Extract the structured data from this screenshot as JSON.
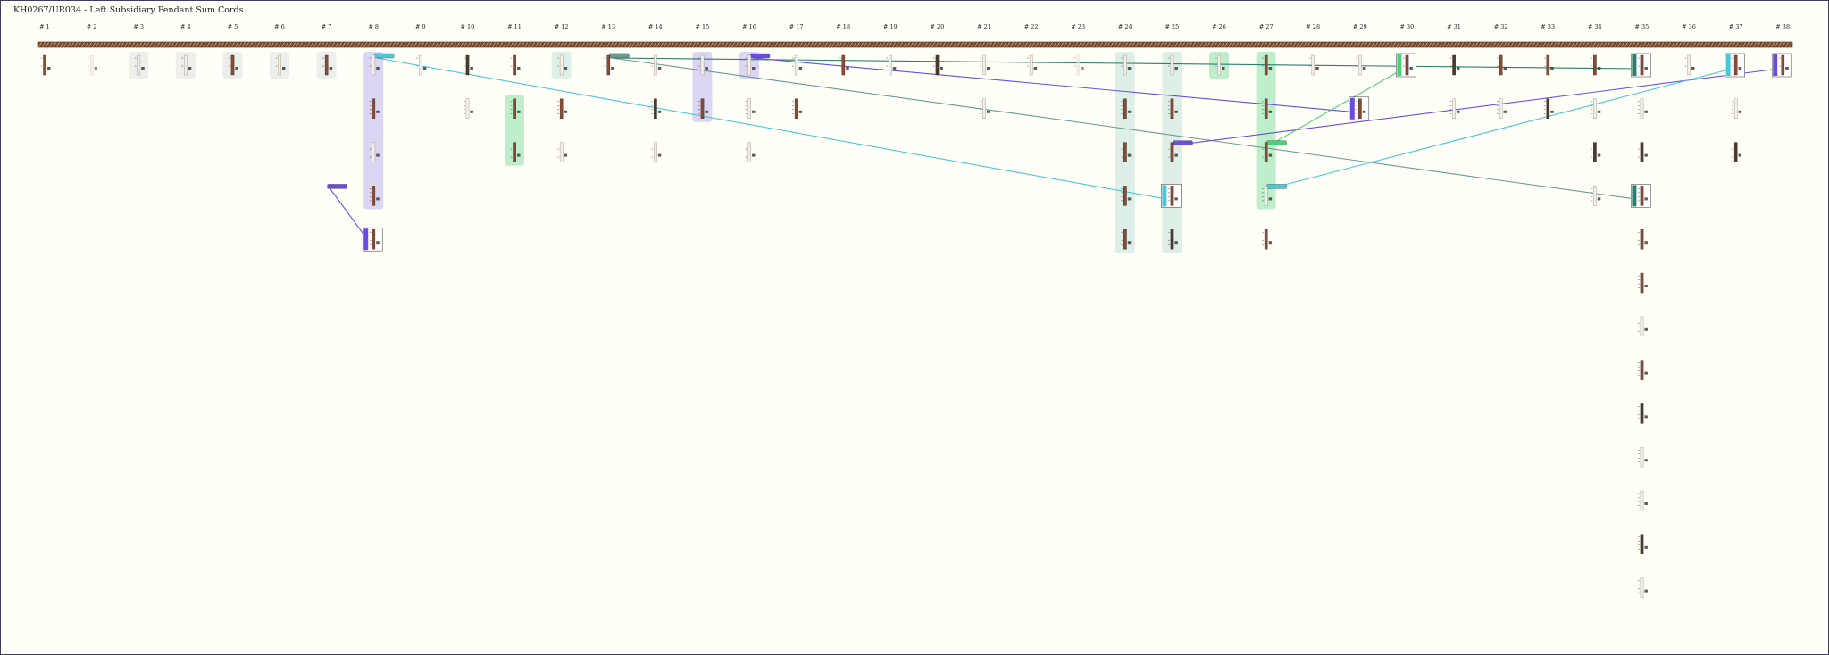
{
  "title": "KH0267/UR034 - Left Subsidiary Pendant Sum Cords",
  "columns": [
    "# 1",
    "# 2",
    "# 3",
    "# 4",
    "# 5",
    "# 6",
    "# 7",
    "# 8",
    "# 9",
    "# 10",
    "# 11",
    "# 12",
    "# 13",
    "# 14",
    "# 15",
    "# 16",
    "# 17",
    "# 18",
    "# 19",
    "# 20",
    "# 21",
    "# 22",
    "# 23",
    "# 24",
    "# 25",
    "# 26",
    "# 27",
    "# 28",
    "# 29",
    "# 30",
    "# 31",
    "# 32",
    "# 33",
    "# 34",
    "# 35",
    "# 36",
    "# 37",
    "# 38"
  ],
  "colors": {
    "background": "#fffff8",
    "main_cord": "#8b5a3c",
    "cord_brown": "#8b4a34",
    "cord_dark": "#4a3a30",
    "teal": "#2a7f6a",
    "purple": "#6a4de0",
    "cyan": "#49c7d6",
    "green": "#4cd07a",
    "grey_teal": "#6a9a92",
    "highlight_purple": "#cfc8f2",
    "highlight_green": "#a8e8bc",
    "highlight_teal": "#d2eae2",
    "highlight_grey": "#e6eae8"
  },
  "cord_levels": [
    {
      "col": 1,
      "level": 0,
      "kind": "brown"
    },
    {
      "col": 2,
      "level": 0,
      "kind": "ghost"
    },
    {
      "col": 3,
      "level": 0,
      "kind": "light"
    },
    {
      "col": 4,
      "level": 0,
      "kind": "light"
    },
    {
      "col": 5,
      "level": 0,
      "kind": "brown"
    },
    {
      "col": 6,
      "level": 0,
      "kind": "light"
    },
    {
      "col": 7,
      "level": 0,
      "kind": "brown"
    },
    {
      "col": 8,
      "level": 0,
      "kind": "light"
    },
    {
      "col": 8,
      "level": 1,
      "kind": "brown"
    },
    {
      "col": 8,
      "level": 2,
      "kind": "light"
    },
    {
      "col": 8,
      "level": 3,
      "kind": "brown"
    },
    {
      "col": 8,
      "level": 4,
      "kind": "purple-box"
    },
    {
      "col": 9,
      "level": 0,
      "kind": "light"
    },
    {
      "col": 10,
      "level": 0,
      "kind": "dark"
    },
    {
      "col": 10,
      "level": 1,
      "kind": "light"
    },
    {
      "col": 11,
      "level": 0,
      "kind": "brown"
    },
    {
      "col": 11,
      "level": 1,
      "kind": "brown"
    },
    {
      "col": 11,
      "level": 2,
      "kind": "brown"
    },
    {
      "col": 12,
      "level": 0,
      "kind": "light"
    },
    {
      "col": 12,
      "level": 1,
      "kind": "brown"
    },
    {
      "col": 12,
      "level": 2,
      "kind": "light"
    },
    {
      "col": 13,
      "level": 0,
      "kind": "brown"
    },
    {
      "col": 14,
      "level": 0,
      "kind": "light"
    },
    {
      "col": 14,
      "level": 1,
      "kind": "dark"
    },
    {
      "col": 14,
      "level": 2,
      "kind": "light"
    },
    {
      "col": 15,
      "level": 0,
      "kind": "light"
    },
    {
      "col": 15,
      "level": 1,
      "kind": "brown"
    },
    {
      "col": 16,
      "level": 0,
      "kind": "light"
    },
    {
      "col": 16,
      "level": 1,
      "kind": "light"
    },
    {
      "col": 16,
      "level": 2,
      "kind": "light"
    },
    {
      "col": 17,
      "level": 0,
      "kind": "light"
    },
    {
      "col": 17,
      "level": 1,
      "kind": "brown"
    },
    {
      "col": 18,
      "level": 0,
      "kind": "brown"
    },
    {
      "col": 19,
      "level": 0,
      "kind": "light"
    },
    {
      "col": 20,
      "level": 0,
      "kind": "dark"
    },
    {
      "col": 21,
      "level": 0,
      "kind": "light"
    },
    {
      "col": 21,
      "level": 1,
      "kind": "light"
    },
    {
      "col": 22,
      "level": 0,
      "kind": "light"
    },
    {
      "col": 23,
      "level": 0,
      "kind": "ghost"
    },
    {
      "col": 24,
      "level": 0,
      "kind": "light"
    },
    {
      "col": 24,
      "level": 1,
      "kind": "brown"
    },
    {
      "col": 24,
      "level": 2,
      "kind": "brown"
    },
    {
      "col": 24,
      "level": 3,
      "kind": "brown"
    },
    {
      "col": 24,
      "level": 4,
      "kind": "brown"
    },
    {
      "col": 25,
      "level": 0,
      "kind": "light"
    },
    {
      "col": 25,
      "level": 1,
      "kind": "brown"
    },
    {
      "col": 25,
      "level": 2,
      "kind": "brown"
    },
    {
      "col": 25,
      "level": 3,
      "kind": "cyan-box"
    },
    {
      "col": 25,
      "level": 4,
      "kind": "dark"
    },
    {
      "col": 26,
      "level": 0,
      "kind": "light"
    },
    {
      "col": 27,
      "level": 0,
      "kind": "brown"
    },
    {
      "col": 27,
      "level": 1,
      "kind": "brown"
    },
    {
      "col": 27,
      "level": 2,
      "kind": "brown"
    },
    {
      "col": 27,
      "level": 3,
      "kind": "light"
    },
    {
      "col": 27,
      "level": 4,
      "kind": "brown"
    },
    {
      "col": 28,
      "level": 0,
      "kind": "light"
    },
    {
      "col": 29,
      "level": 0,
      "kind": "light"
    },
    {
      "col": 29,
      "level": 1,
      "kind": "purple-box"
    },
    {
      "col": 30,
      "level": 0,
      "kind": "green-box"
    },
    {
      "col": 31,
      "level": 0,
      "kind": "dark"
    },
    {
      "col": 31,
      "level": 1,
      "kind": "light"
    },
    {
      "col": 32,
      "level": 0,
      "kind": "brown"
    },
    {
      "col": 32,
      "level": 1,
      "kind": "light"
    },
    {
      "col": 33,
      "level": 0,
      "kind": "brown"
    },
    {
      "col": 33,
      "level": 1,
      "kind": "dark"
    },
    {
      "col": 34,
      "level": 0,
      "kind": "brown"
    },
    {
      "col": 34,
      "level": 1,
      "kind": "light"
    },
    {
      "col": 34,
      "level": 2,
      "kind": "dark"
    },
    {
      "col": 34,
      "level": 3,
      "kind": "light"
    },
    {
      "col": 35,
      "level": 0,
      "kind": "teal-box"
    },
    {
      "col": 35,
      "level": 1,
      "kind": "light"
    },
    {
      "col": 35,
      "level": 2,
      "kind": "dark"
    },
    {
      "col": 35,
      "level": 3,
      "kind": "teal-box"
    },
    {
      "col": 35,
      "level": 4,
      "kind": "brown"
    },
    {
      "col": 35,
      "level": 5,
      "kind": "brown"
    },
    {
      "col": 35,
      "level": 6,
      "kind": "light"
    },
    {
      "col": 35,
      "level": 7,
      "kind": "brown"
    },
    {
      "col": 35,
      "level": 8,
      "kind": "dark"
    },
    {
      "col": 35,
      "level": 9,
      "kind": "light"
    },
    {
      "col": 35,
      "level": 10,
      "kind": "light"
    },
    {
      "col": 35,
      "level": 11,
      "kind": "dark"
    },
    {
      "col": 35,
      "level": 12,
      "kind": "light"
    },
    {
      "col": 36,
      "level": 0,
      "kind": "light"
    },
    {
      "col": 37,
      "level": 0,
      "kind": "cyan-box"
    },
    {
      "col": 37,
      "level": 1,
      "kind": "light"
    },
    {
      "col": 37,
      "level": 2,
      "kind": "dark"
    },
    {
      "col": 38,
      "level": 0,
      "kind": "purple-box"
    }
  ],
  "highlights": [
    {
      "col": 7,
      "from_level": 0,
      "to_level": 0,
      "color": "highlight_grey"
    },
    {
      "col": 8,
      "from_level": 0,
      "to_level": 3,
      "color": "highlight_purple"
    },
    {
      "col": 11,
      "from_level": 1,
      "to_level": 2,
      "color": "highlight_green"
    },
    {
      "col": 12,
      "from_level": 0,
      "to_level": 0,
      "color": "highlight_teal"
    },
    {
      "col": 15,
      "from_level": 0,
      "to_level": 1,
      "color": "highlight_purple"
    },
    {
      "col": 16,
      "from_level": 0,
      "to_level": 0,
      "color": "highlight_purple"
    },
    {
      "col": 24,
      "from_level": 0,
      "to_level": 4,
      "color": "highlight_teal"
    },
    {
      "col": 25,
      "from_level": 0,
      "to_level": 4,
      "color": "highlight_teal"
    },
    {
      "col": 26,
      "from_level": 0,
      "to_level": 0,
      "color": "highlight_green"
    },
    {
      "col": 27,
      "from_level": 0,
      "to_level": 3,
      "color": "highlight_green"
    },
    {
      "col": 3,
      "from_level": 0,
      "to_level": 0,
      "color": "highlight_grey"
    },
    {
      "col": 4,
      "from_level": 0,
      "to_level": 0,
      "color": "highlight_grey"
    },
    {
      "col": 5,
      "from_level": 0,
      "to_level": 0,
      "color": "highlight_grey"
    },
    {
      "col": 6,
      "from_level": 0,
      "to_level": 0,
      "color": "highlight_grey"
    }
  ],
  "sum_links": [
    {
      "from_col": 8,
      "from_level": 0,
      "to_col": 25,
      "to_level": 3,
      "color": "cyan"
    },
    {
      "from_col": 7,
      "from_level": 3,
      "to_col": 8,
      "to_level": 4,
      "color": "purple"
    },
    {
      "from_col": 13,
      "from_level": 0,
      "to_col": 35,
      "to_level": 0,
      "color": "teal"
    },
    {
      "from_col": 13,
      "from_level": 0,
      "to_col": 35,
      "to_level": 3,
      "color": "grey_teal"
    },
    {
      "from_col": 16,
      "from_level": 0,
      "to_col": 29,
      "to_level": 1,
      "color": "purple"
    },
    {
      "from_col": 25,
      "from_level": 2,
      "to_col": 38,
      "to_level": 0,
      "color": "purple"
    },
    {
      "from_col": 27,
      "from_level": 2,
      "to_col": 30,
      "to_level": 0,
      "color": "green"
    },
    {
      "from_col": 27,
      "from_level": 3,
      "to_col": 37,
      "to_level": 0,
      "color": "cyan"
    }
  ]
}
